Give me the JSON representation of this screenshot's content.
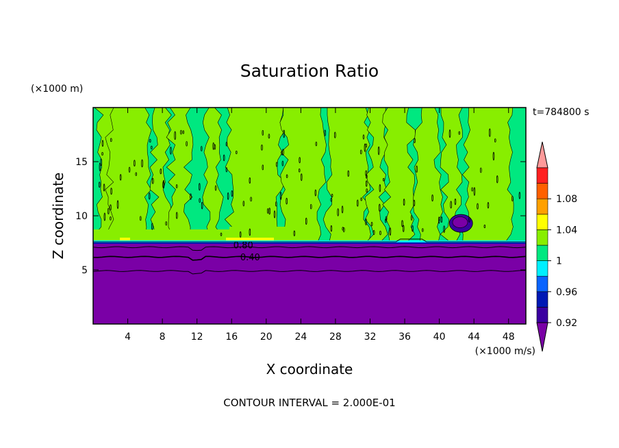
{
  "chart_data": {
    "type": "heatmap",
    "title": "Saturation Ratio",
    "xlabel": "X coordinate",
    "ylabel": "Z coordinate",
    "x_unit": "(×1000 m/s)",
    "y_unit": "(×1000 m)",
    "time_label": "t=784800 s",
    "footer": "CONTOUR INTERVAL = 2.000E-01",
    "xlim": [
      0,
      50
    ],
    "ylim": [
      0,
      20
    ],
    "x_ticks": [
      4,
      8,
      12,
      16,
      20,
      24,
      28,
      32,
      36,
      40,
      44,
      48
    ],
    "y_ticks": [
      5,
      10,
      15
    ],
    "contour_labels": [
      {
        "text": "0.80",
        "x": 16.2,
        "y": 7.3
      },
      {
        "text": "0.40",
        "x": 17.0,
        "y": 6.2
      }
    ],
    "colorbar": {
      "levels": [
        0.92,
        0.94,
        0.96,
        0.98,
        1.0,
        1.02,
        1.04,
        1.06,
        1.08,
        1.1
      ],
      "tick_labels": [
        "0.92",
        "0.96",
        "1",
        "1.04",
        "1.08"
      ],
      "tick_values": [
        0.92,
        0.96,
        1.0,
        1.04,
        1.08
      ],
      "colors": [
        "#7a00a6",
        "#3a00a0",
        "#0018b4",
        "#0a64ff",
        "#00f0ff",
        "#00e880",
        "#88ee00",
        "#ffff00",
        "#ffa000",
        "#ff6000",
        "#ff2020",
        "#ff9a9a"
      ]
    },
    "regions": {
      "dry_layer_top": 7.6,
      "contour_lines_z": [
        7.1,
        6.2,
        4.9
      ],
      "moist_layer_color": "#00e880",
      "dry_layer_color": "#7a00a6"
    }
  }
}
